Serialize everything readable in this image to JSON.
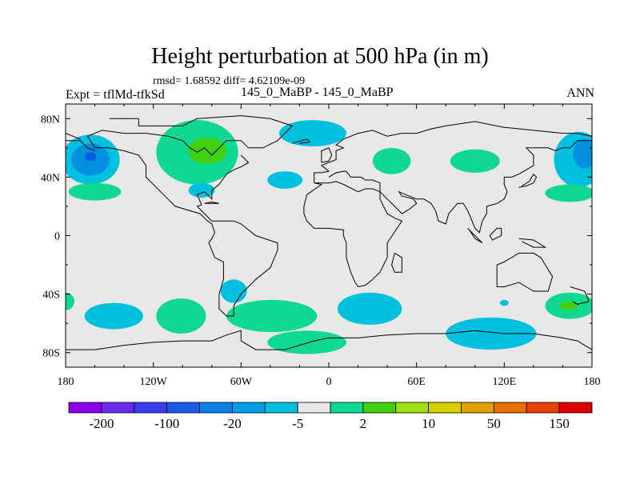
{
  "title": "Height perturbation at 500 hPa (in m)",
  "stats": "rmsd= 1.68592 diff= 4.62109e-09",
  "experiment": "Expt = tflMd-tfkSd",
  "case": "145_0_MaBP - 145_0_MaBP",
  "season": "ANN",
  "map": {
    "lon_range": [
      -180,
      180
    ],
    "lat_range": [
      -90,
      90
    ],
    "ocean_color": "#e8e8e8",
    "lon_ticks": [
      {
        "value": -180,
        "label": "180"
      },
      {
        "value": -120,
        "label": "120W"
      },
      {
        "value": -60,
        "label": "60W"
      },
      {
        "value": 0,
        "label": "0"
      },
      {
        "value": 60,
        "label": "60E"
      },
      {
        "value": 120,
        "label": "120E"
      },
      {
        "value": 180,
        "label": "180"
      }
    ],
    "lat_ticks": [
      {
        "value": 80,
        "label": "80N"
      },
      {
        "value": 40,
        "label": "40N"
      },
      {
        "value": 0,
        "label": "0"
      },
      {
        "value": -40,
        "label": "40S"
      },
      {
        "value": -80,
        "label": "80S"
      }
    ],
    "blobs": [
      {
        "lon": -163,
        "lat": 52,
        "rlon": 20,
        "rlat": 17,
        "color": "#00c0e0"
      },
      {
        "lon": -163,
        "lat": 52,
        "rlon": 13,
        "rlat": 11,
        "color": "#0090e0"
      },
      {
        "lon": -163,
        "lat": 54,
        "rlon": 4,
        "rlat": 3,
        "color": "#0060e0"
      },
      {
        "lon": -160,
        "lat": 30,
        "rlon": 18,
        "rlat": 6,
        "color": "#10d890"
      },
      {
        "lon": -90,
        "lat": 57,
        "rlon": 28,
        "rlat": 22,
        "color": "#10d890"
      },
      {
        "lon": -83,
        "lat": 58,
        "rlon": 13,
        "rlat": 9,
        "color": "#40d010"
      },
      {
        "lon": -87,
        "lat": 31,
        "rlon": 9,
        "rlat": 5,
        "color": "#00c0e0"
      },
      {
        "lon": -30,
        "lat": 38,
        "rlon": 12,
        "rlat": 6,
        "color": "#00c0e0"
      },
      {
        "lon": -11,
        "lat": 70,
        "rlon": 23,
        "rlat": 9,
        "color": "#00c0e0"
      },
      {
        "lon": 43,
        "lat": 51,
        "rlon": 13,
        "rlat": 9,
        "color": "#10d890"
      },
      {
        "lon": 100,
        "lat": 51,
        "rlon": 17,
        "rlat": 8,
        "color": "#10d890"
      },
      {
        "lon": 171,
        "lat": 52,
        "rlon": 17,
        "rlat": 19,
        "color": "#00c0e0"
      },
      {
        "lon": 175,
        "lat": 56,
        "rlon": 8,
        "rlat": 10,
        "color": "#0090e0"
      },
      {
        "lon": 165,
        "lat": 29,
        "rlon": 17,
        "rlat": 6,
        "color": "#10d890"
      },
      {
        "lon": -65,
        "lat": -38,
        "rlon": 9,
        "rlat": 8,
        "color": "#00c0e0"
      },
      {
        "lon": -147,
        "lat": -55,
        "rlon": 20,
        "rlat": 9,
        "color": "#00c0e0"
      },
      {
        "lon": -101,
        "lat": -55,
        "rlon": 17,
        "rlat": 12,
        "color": "#10d890"
      },
      {
        "lon": -39,
        "lat": -55,
        "rlon": 31,
        "rlat": 11,
        "color": "#10d890"
      },
      {
        "lon": -180,
        "lat": -45,
        "rlon": 6,
        "rlat": 6,
        "color": "#10d890"
      },
      {
        "lon": 28,
        "lat": -50,
        "rlon": 22,
        "rlat": 11,
        "color": "#00c0e0"
      },
      {
        "lon": -15,
        "lat": -73,
        "rlon": 27,
        "rlat": 8,
        "color": "#10d890"
      },
      {
        "lon": 111,
        "lat": -67,
        "rlon": 31,
        "rlat": 11,
        "color": "#00c0e0"
      },
      {
        "lon": 165,
        "lat": -48,
        "rlon": 17,
        "rlat": 9,
        "color": "#10d890"
      },
      {
        "lon": 164,
        "lat": -48,
        "rlon": 6,
        "rlat": 3,
        "color": "#40d010"
      },
      {
        "lon": 120,
        "lat": -46,
        "rlon": 3,
        "rlat": 2,
        "color": "#00c0e0"
      }
    ],
    "coastlines": [
      [
        [
          -150,
          80
        ],
        [
          -130,
          80
        ],
        [
          -130,
          75
        ],
        [
          -100,
          75
        ],
        [
          -90,
          80
        ],
        [
          -60,
          82
        ],
        [
          -40,
          80
        ],
        [
          -25,
          75
        ],
        [
          -35,
          65
        ],
        [
          -45,
          60
        ],
        [
          -55,
          60
        ],
        [
          -60,
          65
        ],
        [
          -70,
          65
        ],
        [
          -75,
          60
        ],
        [
          -80,
          55
        ],
        [
          -85,
          60
        ],
        [
          -90,
          57
        ],
        [
          -95,
          60
        ],
        [
          -100,
          65
        ],
        [
          -110,
          68
        ],
        [
          -125,
          70
        ],
        [
          -140,
          70
        ],
        [
          -155,
          72
        ],
        [
          -165,
          68
        ],
        [
          -160,
          60
        ],
        [
          -150,
          60
        ],
        [
          -140,
          58
        ],
        [
          -130,
          55
        ],
        [
          -125,
          48
        ],
        [
          -125,
          40
        ],
        [
          -118,
          33
        ],
        [
          -110,
          25
        ],
        [
          -105,
          20
        ],
        [
          -95,
          17
        ],
        [
          -88,
          15
        ],
        [
          -83,
          10
        ],
        [
          -80,
          8
        ],
        [
          -78,
          2
        ],
        [
          -80,
          -2
        ],
        [
          -82,
          -5
        ],
        [
          -78,
          -15
        ],
        [
          -72,
          -18
        ],
        [
          -72,
          -30
        ],
        [
          -75,
          -40
        ],
        [
          -75,
          -50
        ],
        [
          -70,
          -55
        ],
        [
          -65,
          -55
        ],
        [
          -65,
          -48
        ],
        [
          -60,
          -40
        ],
        [
          -50,
          -30
        ],
        [
          -40,
          -22
        ],
        [
          -35,
          -10
        ],
        [
          -35,
          -5
        ],
        [
          -50,
          0
        ],
        [
          -60,
          8
        ],
        [
          -65,
          10
        ],
        [
          -75,
          10
        ],
        [
          -80,
          10
        ],
        [
          -85,
          15
        ],
        [
          -90,
          20
        ],
        [
          -87,
          21
        ],
        [
          -90,
          28
        ],
        [
          -85,
          30
        ],
        [
          -80,
          25
        ],
        [
          -80,
          31
        ],
        [
          -75,
          35
        ],
        [
          -70,
          42
        ],
        [
          -65,
          45
        ],
        [
          -60,
          47
        ],
        [
          -55,
          50
        ],
        [
          -60,
          55
        ]
      ],
      [
        [
          -180,
          65
        ],
        [
          -170,
          65
        ],
        [
          -165,
          60
        ],
        [
          -160,
          58
        ]
      ],
      [
        [
          -10,
          36
        ],
        [
          -10,
          43
        ],
        [
          -5,
          43
        ],
        [
          0,
          44
        ],
        [
          -5,
          48
        ],
        [
          0,
          50
        ],
        [
          5,
          52
        ],
        [
          5,
          58
        ],
        [
          10,
          60
        ],
        [
          5,
          62
        ],
        [
          10,
          66
        ],
        [
          20,
          70
        ],
        [
          30,
          72
        ],
        [
          40,
          68
        ],
        [
          50,
          70
        ],
        [
          60,
          70
        ],
        [
          70,
          73
        ],
        [
          80,
          75
        ],
        [
          100,
          78
        ],
        [
          110,
          76
        ],
        [
          120,
          74
        ],
        [
          140,
          72
        ],
        [
          160,
          70
        ],
        [
          170,
          70
        ],
        [
          180,
          68
        ]
      ],
      [
        [
          -10,
          36
        ],
        [
          -5,
          35
        ],
        [
          -15,
          28
        ],
        [
          -17,
          20
        ],
        [
          -17,
          15
        ],
        [
          -15,
          10
        ],
        [
          -10,
          5
        ],
        [
          -5,
          5
        ],
        [
          0,
          5
        ],
        [
          10,
          4
        ],
        [
          10,
          0
        ],
        [
          12,
          -5
        ],
        [
          12,
          -15
        ],
        [
          15,
          -25
        ],
        [
          18,
          -32
        ],
        [
          20,
          -35
        ],
        [
          25,
          -34
        ],
        [
          30,
          -30
        ],
        [
          35,
          -25
        ],
        [
          40,
          -15
        ],
        [
          40,
          -10
        ],
        [
          40,
          -5
        ],
        [
          50,
          10
        ],
        [
          45,
          12
        ],
        [
          40,
          15
        ],
        [
          35,
          25
        ],
        [
          35,
          30
        ],
        [
          30,
          32
        ],
        [
          25,
          32
        ],
        [
          20,
          30
        ],
        [
          10,
          35
        ],
        [
          5,
          37
        ],
        [
          0,
          36
        ],
        [
          -5,
          36
        ],
        [
          -10,
          36
        ]
      ],
      [
        [
          35,
          30
        ],
        [
          40,
          25
        ],
        [
          45,
          20
        ],
        [
          50,
          15
        ],
        [
          55,
          18
        ],
        [
          60,
          22
        ],
        [
          58,
          25
        ],
        [
          50,
          27
        ],
        [
          48,
          30
        ],
        [
          55,
          27
        ],
        [
          60,
          25
        ],
        [
          65,
          25
        ],
        [
          70,
          22
        ],
        [
          73,
          17
        ],
        [
          75,
          10
        ],
        [
          80,
          8
        ],
        [
          82,
          15
        ],
        [
          88,
          22
        ],
        [
          92,
          22
        ],
        [
          95,
          17
        ],
        [
          98,
          10
        ],
        [
          100,
          5
        ],
        [
          103,
          2
        ],
        [
          105,
          10
        ],
        [
          108,
          15
        ],
        [
          108,
          20
        ],
        [
          115,
          22
        ],
        [
          120,
          25
        ],
        [
          122,
          30
        ],
        [
          120,
          35
        ],
        [
          120,
          40
        ],
        [
          125,
          40
        ],
        [
          130,
          42
        ],
        [
          135,
          45
        ],
        [
          140,
          48
        ],
        [
          140,
          55
        ],
        [
          135,
          60
        ],
        [
          150,
          60
        ],
        [
          155,
          58
        ],
        [
          160,
          60
        ],
        [
          165,
          60
        ],
        [
          170,
          65
        ],
        [
          180,
          65
        ]
      ],
      [
        [
          35,
          30
        ],
        [
          35,
          36
        ],
        [
          30,
          38
        ],
        [
          25,
          38
        ],
        [
          22,
          40
        ],
        [
          20,
          40
        ],
        [
          15,
          40
        ],
        [
          12,
          44
        ],
        [
          10,
          44
        ],
        [
          5,
          43
        ],
        [
          0,
          40
        ]
      ],
      [
        [
          115,
          -20
        ],
        [
          115,
          -35
        ],
        [
          120,
          -35
        ],
        [
          130,
          -32
        ],
        [
          140,
          -38
        ],
        [
          150,
          -38
        ],
        [
          153,
          -28
        ],
        [
          145,
          -15
        ],
        [
          140,
          -12
        ],
        [
          135,
          -12
        ],
        [
          130,
          -12
        ],
        [
          120,
          -18
        ],
        [
          115,
          -20
        ]
      ],
      [
        [
          -180,
          -78
        ],
        [
          -160,
          -78
        ],
        [
          -140,
          -75
        ],
        [
          -120,
          -73
        ],
        [
          -100,
          -72
        ],
        [
          -80,
          -72
        ],
        [
          -70,
          -68
        ],
        [
          -60,
          -65
        ],
        [
          -60,
          -72
        ],
        [
          -50,
          -78
        ],
        [
          -30,
          -78
        ],
        [
          -10,
          -72
        ],
        [
          0,
          -70
        ],
        [
          20,
          -70
        ],
        [
          40,
          -68
        ],
        [
          60,
          -67
        ],
        [
          80,
          -67
        ],
        [
          100,
          -65
        ],
        [
          120,
          -67
        ],
        [
          140,
          -67
        ],
        [
          160,
          -70
        ],
        [
          170,
          -72
        ],
        [
          180,
          -78
        ]
      ],
      [
        [
          165,
          -35
        ],
        [
          175,
          -38
        ],
        [
          178,
          -45
        ],
        [
          170,
          -47
        ],
        [
          167,
          -45
        ]
      ],
      [
        [
          45,
          -12
        ],
        [
          50,
          -15
        ],
        [
          50,
          -25
        ],
        [
          45,
          -25
        ],
        [
          43,
          -20
        ],
        [
          45,
          -12
        ]
      ],
      [
        [
          -5,
          50
        ],
        [
          -5,
          58
        ],
        [
          0,
          60
        ],
        [
          2,
          55
        ],
        [
          0,
          51
        ],
        [
          -5,
          50
        ]
      ],
      [
        [
          -25,
          63
        ],
        [
          -15,
          66
        ],
        [
          -13,
          64
        ],
        [
          -20,
          63
        ]
      ],
      [
        [
          130,
          33
        ],
        [
          135,
          34
        ],
        [
          140,
          36
        ],
        [
          142,
          40
        ],
        [
          140,
          42
        ],
        [
          137,
          37
        ],
        [
          132,
          34
        ]
      ],
      [
        [
          95,
          5
        ],
        [
          105,
          -5
        ],
        [
          100,
          -2
        ],
        [
          96,
          4
        ]
      ],
      [
        [
          110,
          0
        ],
        [
          115,
          5
        ],
        [
          118,
          5
        ],
        [
          118,
          0
        ],
        [
          112,
          -3
        ],
        [
          110,
          0
        ]
      ],
      [
        [
          130,
          -2
        ],
        [
          140,
          -3
        ],
        [
          148,
          -8
        ],
        [
          140,
          -8
        ],
        [
          132,
          -4
        ]
      ],
      [
        [
          -85,
          22
        ],
        [
          -75,
          22
        ],
        [
          -80,
          23
        ],
        [
          -85,
          22
        ]
      ],
      [
        [
          -180,
          70
        ],
        [
          -175,
          68
        ],
        [
          -170,
          66
        ]
      ]
    ]
  },
  "colorbar": {
    "colors": [
      "#8c00e8",
      "#6a28e8",
      "#3c3cf0",
      "#1a5ae8",
      "#0a80e8",
      "#00a0e8",
      "#00c0e0",
      "#e8e8e8",
      "#10d890",
      "#40d010",
      "#a0e010",
      "#d8d000",
      "#e0a000",
      "#e87000",
      "#e84000",
      "#e00000"
    ],
    "labels": [
      {
        "boundary": 1,
        "text": "-200"
      },
      {
        "boundary": 3,
        "text": "-100"
      },
      {
        "boundary": 5,
        "text": "-20"
      },
      {
        "boundary": 7,
        "text": "-5"
      },
      {
        "boundary": 9,
        "text": "2"
      },
      {
        "boundary": 11,
        "text": "10"
      },
      {
        "boundary": 13,
        "text": "50"
      },
      {
        "boundary": 15,
        "text": "150"
      }
    ]
  }
}
